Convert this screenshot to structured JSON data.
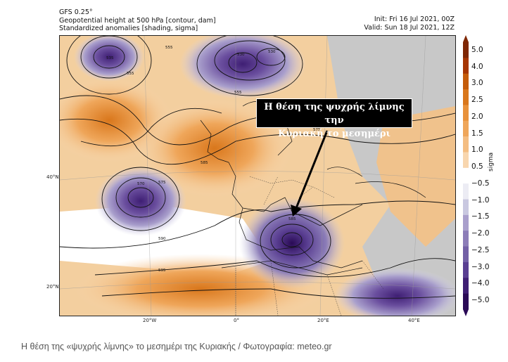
{
  "header": {
    "line1": "GFS 0.25°",
    "line2": "Geopotential height at 500 hPa [contour, dam]",
    "line3": "Standardized anomalies [shading, sigma]",
    "init": "Init: Fri 16 Jul 2021, 00Z",
    "valid": "Valid: Sun 18 Jul 2021, 12Z"
  },
  "annotation": {
    "line1": "Η θέση της ψυχρής λίμνης την",
    "line2": "Κυριακή το μεσημέρι"
  },
  "latitude_labels": [
    "40°N",
    "20°N"
  ],
  "longitude_labels": [
    "20°W",
    "0°",
    "20°E",
    "40°E"
  ],
  "contour_labels": [
    "535",
    "555",
    "555",
    "530",
    "530",
    "555",
    "575",
    "585",
    "570",
    "575",
    "590",
    "595",
    "585"
  ],
  "colorbar": {
    "title": "sigma",
    "ticks": [
      "5.0",
      "4.0",
      "3.0",
      "2.5",
      "2.0",
      "1.5",
      "1.0",
      "0.5",
      "−0.5",
      "−1.0",
      "−1.5",
      "−2.0",
      "−2.5",
      "−3.0",
      "−4.0",
      "−5.0"
    ],
    "colors": [
      "#7f2704",
      "#a63603",
      "#c45c0a",
      "#d9771c",
      "#e8913a",
      "#efa65a",
      "#f4bd82",
      "#f8d6ae",
      "#ffffff",
      "#ececf4",
      "#c9c8e0",
      "#a99fcc",
      "#8c7db8",
      "#7360a6",
      "#5a3f92",
      "#3f1f74",
      "#2a0a56"
    ]
  },
  "caption": "Η θέση της «ψυχρής λίμνης» το μεσημέρι της Κυριακής / Φωτογραφία: meteo.gr"
}
